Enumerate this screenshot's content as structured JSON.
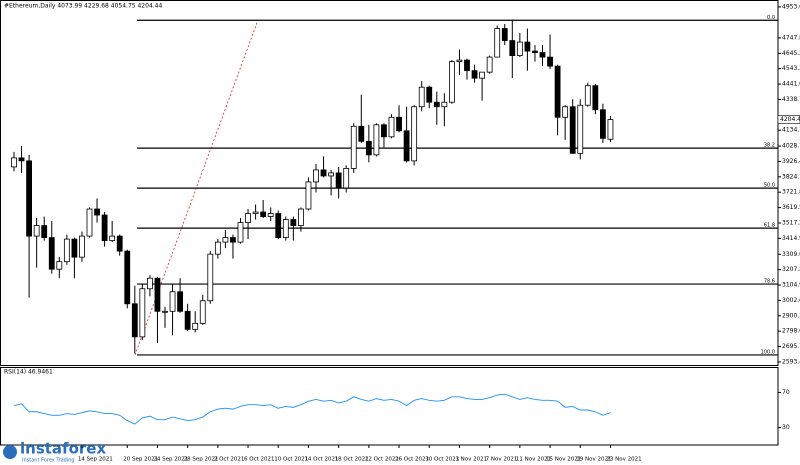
{
  "chart_data": {
    "type": "candlestick",
    "title": "#Ethereum,Daily 4073.99 4229.68 4054.75 4204.44",
    "categories": [
      null,
      null,
      null,
      null,
      null,
      null,
      null,
      null,
      null,
      "14 Sep 2021",
      null,
      null,
      null,
      null,
      null,
      "20 Sep 2021",
      null,
      null,
      null,
      "24 Sep 2021",
      null,
      null,
      null,
      "28 Sep 2021",
      null,
      null,
      null,
      "2 Oct 2021",
      null,
      null,
      null,
      "6 Oct 2021",
      null,
      null,
      null,
      "10 Oct 2021",
      null,
      null,
      null,
      "14 Oct 2021",
      null,
      null,
      null,
      "18 Oct 2021",
      null,
      null,
      null,
      "22 Oct 2021",
      null,
      null,
      null,
      "26 Oct 2021",
      null,
      null,
      null,
      "30 Oct 2021",
      null,
      null,
      null,
      "3 Nov 2021",
      null,
      null,
      null,
      "7 Nov 2021",
      null,
      null,
      null,
      "11 Nov 2021",
      null,
      null,
      null,
      "15 Nov 2021",
      null,
      null,
      null,
      "19 Nov 2021",
      null,
      null,
      null,
      "23 Nov 2021"
    ],
    "open": [
      3890,
      3950,
      3930,
      3430,
      3500,
      3420,
      3210,
      3260,
      3410,
      3290,
      3430,
      3610,
      3570,
      3400,
      3430,
      3330,
      2980,
      2760,
      3080,
      3150,
      2930,
      2930,
      3060,
      2930,
      2810,
      2850,
      3000,
      3310,
      3390,
      3420,
      3390,
      3520,
      3580,
      3590,
      3560,
      3580,
      3420,
      3540,
      3500,
      3610,
      3790,
      3870,
      3830,
      3850,
      3750,
      3880,
      4160,
      4060,
      3970,
      4170,
      4090,
      4220,
      4130,
      3930,
      4290,
      4420,
      4320,
      4290,
      4320,
      4590,
      4600,
      4530,
      4480,
      4520,
      4620,
      4810,
      4730,
      4630,
      4720,
      4660,
      4650,
      4620,
      4560,
      4220,
      4290,
      3980,
      4300,
      4430,
      4270,
      4073.99
    ],
    "high": [
      3990,
      4030,
      3970,
      3550,
      3560,
      3530,
      3290,
      3440,
      3420,
      3460,
      3620,
      3680,
      3590,
      3530,
      3440,
      3340,
      3100,
      3110,
      3170,
      3160,
      2960,
      3110,
      3150,
      2980,
      2930,
      3040,
      3330,
      3410,
      3470,
      3440,
      3550,
      3610,
      3640,
      3670,
      3620,
      3600,
      3560,
      3560,
      3620,
      3820,
      3910,
      3960,
      3870,
      3890,
      3900,
      4180,
      4370,
      4170,
      4180,
      4180,
      4240,
      4300,
      4290,
      4300,
      4460,
      4430,
      4390,
      4380,
      4600,
      4670,
      4610,
      4570,
      4520,
      4630,
      4830,
      4840,
      4868,
      4780,
      4810,
      4700,
      4700,
      4770,
      4570,
      4300,
      4340,
      4340,
      4450,
      4440,
      4310,
      4229.68
    ],
    "low": [
      3860,
      3850,
      3020,
      3220,
      3400,
      3180,
      3150,
      3240,
      3150,
      3260,
      3420,
      3520,
      3360,
      3390,
      3300,
      2950,
      2650,
      2740,
      3030,
      2720,
      2820,
      2770,
      2920,
      2800,
      2790,
      2840,
      2980,
      3280,
      3350,
      3280,
      3380,
      3410,
      3540,
      3550,
      3530,
      3410,
      3400,
      3400,
      3460,
      3600,
      3720,
      3820,
      3700,
      3680,
      3720,
      3850,
      4050,
      3920,
      3960,
      4020,
      4080,
      4120,
      3920,
      3900,
      4260,
      4280,
      4170,
      4160,
      4310,
      4500,
      4470,
      4450,
      4330,
      4510,
      4620,
      4700,
      4480,
      4620,
      4530,
      4590,
      4560,
      4540,
      4100,
      4070,
      3980,
      3940,
      4290,
      4240,
      4050,
      4054.75
    ],
    "close": [
      3950,
      3930,
      3430,
      3500,
      3420,
      3210,
      3260,
      3410,
      3290,
      3430,
      3610,
      3570,
      3400,
      3430,
      3330,
      2980,
      2760,
      3080,
      3150,
      2930,
      2930,
      3060,
      2930,
      2810,
      2850,
      3000,
      3310,
      3390,
      3420,
      3390,
      3520,
      3580,
      3590,
      3560,
      3580,
      3420,
      3540,
      3500,
      3610,
      3790,
      3870,
      3830,
      3850,
      3750,
      3880,
      4160,
      4060,
      3970,
      4170,
      4090,
      4220,
      4130,
      3930,
      4290,
      4420,
      4320,
      4290,
      4320,
      4590,
      4600,
      4530,
      4480,
      4520,
      4620,
      4810,
      4730,
      4630,
      4720,
      4660,
      4650,
      4620,
      4560,
      4220,
      4290,
      3980,
      4300,
      4430,
      4270,
      4080,
      4204.44
    ],
    "up_color": "#ffffff",
    "down_color": "#000000",
    "ylim": [
      2573,
      4993
    ],
    "yticks": [
      {
        "value": 2593.4,
        "label": "2593.40"
      },
      {
        "value": 2695.7,
        "label": "2695.70"
      },
      {
        "value": 2798.0,
        "label": "2798.00"
      },
      {
        "value": 2900.3,
        "label": "2900.30"
      },
      {
        "value": 3002.6,
        "label": "3002.60"
      },
      {
        "value": 3104.9,
        "label": "3104.90"
      },
      {
        "value": 3207.2,
        "label": "3207.20"
      },
      {
        "value": 3309.0,
        "label": "3309.00"
      },
      {
        "value": 3414.9,
        "label": "3414.90"
      },
      {
        "value": 3517.2,
        "label": "3517.20"
      },
      {
        "value": 3619.5,
        "label": "3619.50"
      },
      {
        "value": 3721.8,
        "label": "3721.80"
      },
      {
        "value": 3824.1,
        "label": "3824.10"
      },
      {
        "value": 3926.4,
        "label": "3926.40"
      },
      {
        "value": 4028.7,
        "label": "4028.70"
      },
      {
        "value": 4134.1,
        "label": "4134.10"
      },
      {
        "value": 4338.7,
        "label": "4338.70"
      },
      {
        "value": 4441.0,
        "label": "4441.00"
      },
      {
        "value": 4543.3,
        "label": "4543.30"
      },
      {
        "value": 4645.2,
        "label": "4645.20"
      },
      {
        "value": 4747.8,
        "label": "4747.80"
      },
      {
        "value": 4953.6,
        "label": "4953.60"
      }
    ],
    "levels": [
      {
        "value": 4865,
        "label": "0.0"
      },
      {
        "value": 4015,
        "label": "38.2"
      },
      {
        "value": 3749,
        "label": "50.0"
      },
      {
        "value": 3483,
        "label": "61.8"
      },
      {
        "value": 3111,
        "label": "78.6"
      },
      {
        "value": 2640,
        "label": "100.0"
      }
    ],
    "rsi": {
      "label": "RSI(14) 46.9461",
      "color": "#1e90ff",
      "ylim": [
        0,
        100
      ],
      "yticks": [
        70,
        30
      ],
      "values": [
        55,
        57,
        48,
        48,
        46,
        44,
        44,
        46,
        45,
        47,
        49,
        48,
        46,
        46,
        44,
        38,
        34,
        41,
        43,
        39,
        39,
        42,
        40,
        38,
        39,
        42,
        48,
        51,
        52,
        51,
        54,
        56,
        56,
        55,
        56,
        52,
        54,
        53,
        56,
        60,
        62,
        60,
        61,
        58,
        60,
        65,
        62,
        60,
        63,
        61,
        62,
        60,
        55,
        61,
        63,
        61,
        60,
        61,
        65,
        65,
        63,
        62,
        62,
        64,
        67,
        68,
        65,
        62,
        64,
        62,
        61,
        61,
        60,
        53,
        54,
        50,
        50,
        48,
        44,
        46.9461
      ]
    },
    "watermark": "instaforex",
    "watermark_sub": "Instant Forex Trading"
  }
}
